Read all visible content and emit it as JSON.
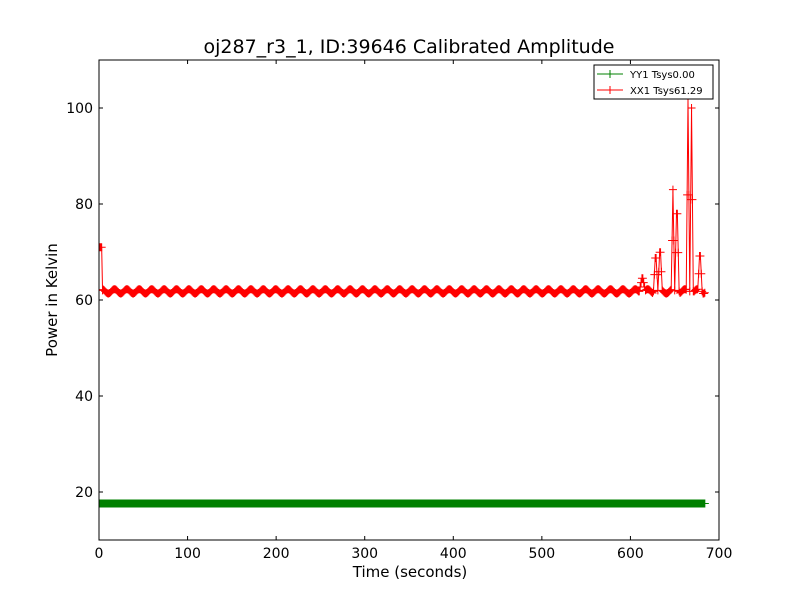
{
  "chart_data": {
    "type": "line",
    "title": "oj287_r3_1, ID:39646 Calibrated Amplitude",
    "xlabel": "Time (seconds)",
    "ylabel": "Power in Kelvin",
    "xlim": [
      0,
      700
    ],
    "ylim": [
      10,
      110
    ],
    "xticks": [
      0,
      100,
      200,
      300,
      400,
      500,
      600,
      700
    ],
    "yticks": [
      20,
      40,
      60,
      80,
      100
    ],
    "xtick_labels": [
      "0",
      "100",
      "200",
      "300",
      "400",
      "500",
      "600",
      "700"
    ],
    "ytick_labels": [
      "20",
      "40",
      "60",
      "80",
      "100"
    ],
    "grid": false,
    "legend_position": "top-right",
    "series": [
      {
        "name": "YY1 Tsys0.00",
        "color": "#008000",
        "marker": "plus",
        "x_start": 0,
        "x_end": 684,
        "x_step": 1,
        "y_constant": 17.6
      },
      {
        "name": "XX1 Tsys61.29",
        "color": "#ff0000",
        "marker": "plus",
        "x_start": 5,
        "x_end": 683,
        "x_step": 1,
        "y_baseline": 61.8,
        "ripple_amplitude": 0.45,
        "ripple_period_seconds": 14,
        "points_extra": [
          {
            "x": 0,
            "y": 71
          },
          {
            "x": 1,
            "y": 71
          },
          {
            "x": 2,
            "y": 71
          },
          {
            "x": 3,
            "y": 71
          },
          {
            "x": 4,
            "y": 62
          }
        ],
        "spikes": [
          {
            "x_start": 610,
            "x_end": 617,
            "peak": 65.0
          },
          {
            "x_start": 626,
            "x_end": 631,
            "peak": 70.5
          },
          {
            "x_start": 631,
            "x_end": 636,
            "peak": 72.0
          },
          {
            "x_start": 646,
            "x_end": 650,
            "peak": 83.0
          },
          {
            "x_start": 650,
            "x_end": 655,
            "peak": 82.0
          },
          {
            "x_start": 663,
            "x_end": 667,
            "peak": 102.0
          },
          {
            "x_start": 667,
            "x_end": 671,
            "peak": 100.0
          },
          {
            "x_start": 676,
            "x_end": 681,
            "peak": 71.0
          }
        ],
        "x_last": 684,
        "y_last": 61.5
      }
    ]
  }
}
